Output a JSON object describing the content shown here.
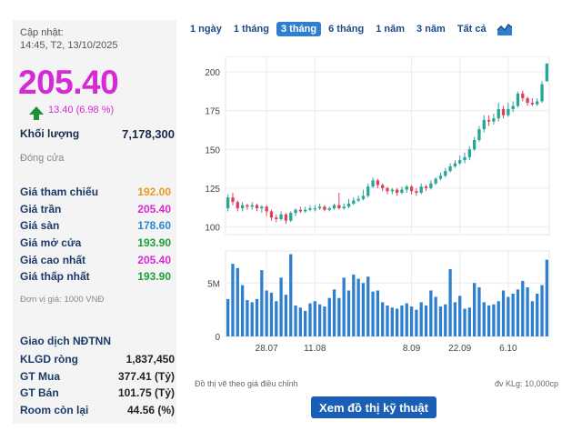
{
  "info": {
    "updated_label": "Cập nhật:",
    "updated_time": "14:45, T2, 13/10/2025",
    "price": "205.40",
    "change": "13.40 (6.98 %)",
    "volume_label": "Khối lượng",
    "volume_value": "7,178,300",
    "status": "Đóng cửa",
    "stats": [
      {
        "label": "Giá tham chiếu",
        "value": "192.00",
        "color": "#e89a1c"
      },
      {
        "label": "Giá trần",
        "value": "205.40",
        "color": "#d62ad6"
      },
      {
        "label": "Giá sàn",
        "value": "178.60",
        "color": "#2a8ad6"
      },
      {
        "label": "Giá mở cửa",
        "value": "193.90",
        "color": "#1f9f3a"
      },
      {
        "label": "Giá cao nhất",
        "value": "205.40",
        "color": "#d62ad6"
      },
      {
        "label": "Giá thấp nhất",
        "value": "193.90",
        "color": "#1f9f3a"
      }
    ],
    "unit_note": "Đơn vị giá: 1000 VNĐ",
    "ndtnn_title": "Giao dịch NĐTNN",
    "ndtnn": [
      {
        "label": "KLGD ròng",
        "value": "1,837,450"
      },
      {
        "label": "GT Mua",
        "value": "377.41  (Tỷ)"
      },
      {
        "label": "GT Bán",
        "value": "101.75  (Tỷ)"
      },
      {
        "label": "Room còn lại",
        "value": "44.56 (%)"
      }
    ]
  },
  "tabs": [
    {
      "label": "1 ngày",
      "active": false
    },
    {
      "label": "1 tháng",
      "active": false
    },
    {
      "label": "3 tháng",
      "active": true
    },
    {
      "label": "6 tháng",
      "active": false
    },
    {
      "label": "1 năm",
      "active": false
    },
    {
      "label": "3 năm",
      "active": false
    },
    {
      "label": "Tất cả",
      "active": false
    }
  ],
  "chart_icon": "area-chart-icon",
  "footer": {
    "caption": "Đồ thị vẽ theo giá điều chỉnh",
    "unit": "đv KLg: 10,000cp",
    "tech_button": "Xem đồ thị kỹ thuật"
  },
  "chart_data": {
    "type": "candlestick",
    "price_ticks": [
      100,
      125,
      150,
      175,
      200
    ],
    "price_range": [
      95,
      210
    ],
    "volume_ticks": [
      {
        "label": "0",
        "value": 0
      },
      {
        "label": "5M",
        "value": 5000000
      }
    ],
    "volume_max": 8000000,
    "x_ticks": [
      {
        "label": "28.07",
        "index": 8
      },
      {
        "label": "11.08",
        "index": 18
      },
      {
        "label": "8.09",
        "index": 38
      },
      {
        "label": "22.09",
        "index": 48
      },
      {
        "label": "6.10",
        "index": 58
      }
    ],
    "candles": [
      {
        "o": 112,
        "c": 119,
        "h": 121,
        "l": 110,
        "v": 3500000
      },
      {
        "o": 119,
        "c": 116,
        "h": 122,
        "l": 114,
        "v": 6800000
      },
      {
        "o": 116,
        "c": 112,
        "h": 117,
        "l": 110,
        "v": 6400000
      },
      {
        "o": 112,
        "c": 114,
        "h": 116,
        "l": 110,
        "v": 4800000
      },
      {
        "o": 114,
        "c": 113,
        "h": 115,
        "l": 111,
        "v": 3400000
      },
      {
        "o": 113,
        "c": 114,
        "h": 116,
        "l": 111,
        "v": 3200000
      },
      {
        "o": 114,
        "c": 112,
        "h": 115,
        "l": 110,
        "v": 3500000
      },
      {
        "o": 112,
        "c": 113,
        "h": 114,
        "l": 109,
        "v": 6200000
      },
      {
        "o": 113,
        "c": 110,
        "h": 114,
        "l": 107,
        "v": 4300000
      },
      {
        "o": 110,
        "c": 106,
        "h": 111,
        "l": 104,
        "v": 4100000
      },
      {
        "o": 106,
        "c": 105,
        "h": 108,
        "l": 103,
        "v": 3300000
      },
      {
        "o": 105,
        "c": 108,
        "h": 110,
        "l": 104,
        "v": 5500000
      },
      {
        "o": 108,
        "c": 104,
        "h": 109,
        "l": 102,
        "v": 3900000
      },
      {
        "o": 104,
        "c": 109,
        "h": 110,
        "l": 103,
        "v": 7700000
      },
      {
        "o": 109,
        "c": 111,
        "h": 112,
        "l": 107,
        "v": 2900000
      },
      {
        "o": 111,
        "c": 110,
        "h": 113,
        "l": 109,
        "v": 2700000
      },
      {
        "o": 110,
        "c": 111,
        "h": 113,
        "l": 109,
        "v": 2400000
      },
      {
        "o": 111,
        "c": 112,
        "h": 114,
        "l": 110,
        "v": 3100000
      },
      {
        "o": 112,
        "c": 112,
        "h": 114,
        "l": 110,
        "v": 3300000
      },
      {
        "o": 112,
        "c": 113,
        "h": 115,
        "l": 111,
        "v": 3000000
      },
      {
        "o": 113,
        "c": 111,
        "h": 114,
        "l": 110,
        "v": 2800000
      },
      {
        "o": 111,
        "c": 112,
        "h": 113,
        "l": 110,
        "v": 3600000
      },
      {
        "o": 112,
        "c": 114,
        "h": 115,
        "l": 111,
        "v": 4400000
      },
      {
        "o": 114,
        "c": 112,
        "h": 122,
        "l": 111,
        "v": 3600000
      },
      {
        "o": 112,
        "c": 113,
        "h": 115,
        "l": 111,
        "v": 5500000
      },
      {
        "o": 113,
        "c": 115,
        "h": 118,
        "l": 112,
        "v": 4300000
      },
      {
        "o": 115,
        "c": 117,
        "h": 119,
        "l": 114,
        "v": 5800000
      },
      {
        "o": 117,
        "c": 118,
        "h": 120,
        "l": 116,
        "v": 5400000
      },
      {
        "o": 118,
        "c": 120,
        "h": 124,
        "l": 117,
        "v": 5000000
      },
      {
        "o": 120,
        "c": 126,
        "h": 128,
        "l": 119,
        "v": 5600000
      },
      {
        "o": 126,
        "c": 130,
        "h": 132,
        "l": 125,
        "v": 4200000
      },
      {
        "o": 130,
        "c": 127,
        "h": 131,
        "l": 125,
        "v": 4300000
      },
      {
        "o": 127,
        "c": 125,
        "h": 128,
        "l": 123,
        "v": 3200000
      },
      {
        "o": 125,
        "c": 123,
        "h": 126,
        "l": 121,
        "v": 2900000
      },
      {
        "o": 123,
        "c": 124,
        "h": 125,
        "l": 121,
        "v": 2700000
      },
      {
        "o": 124,
        "c": 122,
        "h": 125,
        "l": 120,
        "v": 2600000
      },
      {
        "o": 122,
        "c": 124,
        "h": 126,
        "l": 121,
        "v": 2900000
      },
      {
        "o": 124,
        "c": 126,
        "h": 127,
        "l": 122,
        "v": 3100000
      },
      {
        "o": 126,
        "c": 123,
        "h": 127,
        "l": 121,
        "v": 2800000
      },
      {
        "o": 123,
        "c": 122,
        "h": 125,
        "l": 120,
        "v": 2500000
      },
      {
        "o": 122,
        "c": 126,
        "h": 128,
        "l": 121,
        "v": 3200000
      },
      {
        "o": 126,
        "c": 125,
        "h": 127,
        "l": 123,
        "v": 2900000
      },
      {
        "o": 125,
        "c": 128,
        "h": 130,
        "l": 124,
        "v": 4300000
      },
      {
        "o": 128,
        "c": 131,
        "h": 132,
        "l": 127,
        "v": 3700000
      },
      {
        "o": 131,
        "c": 133,
        "h": 135,
        "l": 130,
        "v": 2800000
      },
      {
        "o": 133,
        "c": 136,
        "h": 138,
        "l": 132,
        "v": 3000000
      },
      {
        "o": 136,
        "c": 139,
        "h": 141,
        "l": 135,
        "v": 6300000
      },
      {
        "o": 139,
        "c": 141,
        "h": 143,
        "l": 138,
        "v": 3200000
      },
      {
        "o": 141,
        "c": 143,
        "h": 146,
        "l": 140,
        "v": 3800000
      },
      {
        "o": 143,
        "c": 145,
        "h": 148,
        "l": 141,
        "v": 2600000
      },
      {
        "o": 145,
        "c": 150,
        "h": 152,
        "l": 143,
        "v": 2700000
      },
      {
        "o": 150,
        "c": 156,
        "h": 158,
        "l": 149,
        "v": 5000000
      },
      {
        "o": 156,
        "c": 163,
        "h": 165,
        "l": 155,
        "v": 4600000
      },
      {
        "o": 163,
        "c": 169,
        "h": 172,
        "l": 161,
        "v": 3200000
      },
      {
        "o": 169,
        "c": 168,
        "h": 172,
        "l": 165,
        "v": 2900000
      },
      {
        "o": 168,
        "c": 170,
        "h": 173,
        "l": 166,
        "v": 3000000
      },
      {
        "o": 170,
        "c": 176,
        "h": 180,
        "l": 168,
        "v": 3300000
      },
      {
        "o": 176,
        "c": 172,
        "h": 178,
        "l": 170,
        "v": 4300000
      },
      {
        "o": 172,
        "c": 176,
        "h": 180,
        "l": 171,
        "v": 3700000
      },
      {
        "o": 176,
        "c": 178,
        "h": 181,
        "l": 174,
        "v": 4000000
      },
      {
        "o": 178,
        "c": 186,
        "h": 187,
        "l": 177,
        "v": 4400000
      },
      {
        "o": 186,
        "c": 183,
        "h": 188,
        "l": 181,
        "v": 5200000
      },
      {
        "o": 183,
        "c": 180,
        "h": 184,
        "l": 178,
        "v": 4600000
      },
      {
        "o": 180,
        "c": 179,
        "h": 183,
        "l": 178,
        "v": 3300000
      },
      {
        "o": 179,
        "c": 181,
        "h": 183,
        "l": 178,
        "v": 4000000
      },
      {
        "o": 181,
        "c": 192,
        "h": 194,
        "l": 180,
        "v": 4800000
      },
      {
        "o": 193.9,
        "c": 205.4,
        "h": 205.4,
        "l": 193.9,
        "v": 7178300
      }
    ]
  }
}
